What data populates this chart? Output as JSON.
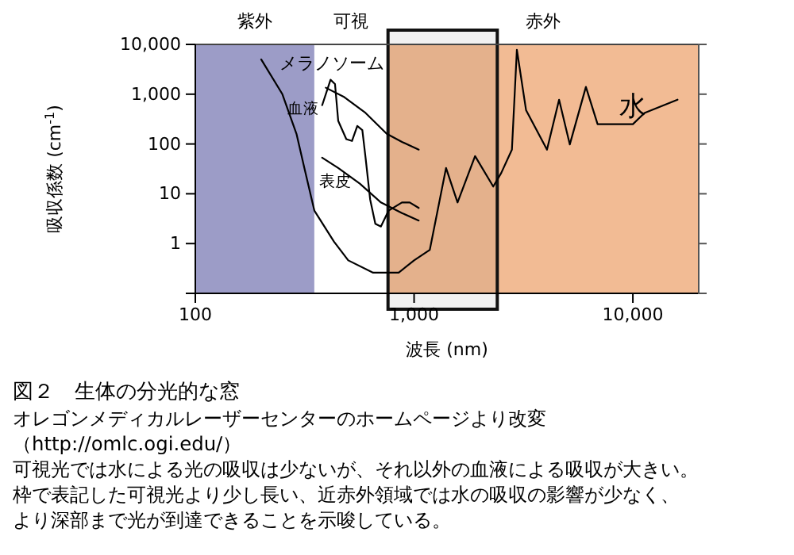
{
  "chart_data": {
    "type": "line",
    "title": "図２　生体の分光的な窓",
    "xlabel": "波長 (nm)",
    "ylabel": "吸収係数 (cm$^{-1}$)",
    "log": "xy",
    "xlim": [
      100,
      20000
    ],
    "xticks": [
      {
        "value": 100,
        "label": "100"
      },
      {
        "value": 1000,
        "label": "1,000"
      },
      {
        "value": 10000,
        "label": "10,000"
      }
    ],
    "ylim": [
      0.1,
      10000
    ],
    "yticks": [
      {
        "value": 0.1,
        "label": null
      },
      {
        "value": 1,
        "label": "1"
      },
      {
        "value": 10,
        "label": "10"
      },
      {
        "value": 100,
        "label": "100"
      },
      {
        "value": 1000,
        "label": "1,000"
      },
      {
        "value": 10000,
        "label": "10,000"
      }
    ],
    "marker": "none",
    "line_style": "solid",
    "bands": [
      {
        "axis": "x",
        "from": 100,
        "to": 350,
        "label": "紫外",
        "color": "#9c9cc7"
      },
      {
        "axis": "x",
        "from": 350,
        "to": 760,
        "label": "可視",
        "color": "#ffffff"
      },
      {
        "axis": "x",
        "from": 760,
        "to": 20000,
        "label": "赤外",
        "color": "#f2bb94"
      },
      {
        "axis": "x",
        "from": 760,
        "to": 2400,
        "color": "#111111"
      }
    ],
    "series": [
      {
        "name": "水",
        "color": "#000000",
        "x": [
          200,
          250,
          290,
          315,
          350,
          430,
          500,
          650,
          850,
          1000,
          1180,
          1400,
          1580,
          1900,
          2300,
          2500,
          2800,
          2950,
          3250,
          4050,
          4600,
          5150,
          6100,
          6900,
          10000,
          11300,
          16000
        ],
        "values": [
          5000,
          1000,
          160,
          33,
          4.6,
          1.1,
          0.46,
          0.26,
          0.26,
          0.46,
          0.75,
          33,
          6.7,
          57,
          14,
          26,
          77,
          7800,
          475,
          77,
          775,
          98,
          1400,
          250,
          250,
          420,
          775
        ]
      },
      {
        "name": "メラノソーム",
        "color": "#000000",
        "x": [
          395,
          480,
          600,
          750,
          880,
          1050
        ],
        "values": [
          1350,
          870,
          420,
          160,
          110,
          77
        ]
      },
      {
        "name": "血液",
        "color": "#000000",
        "x": [
          380,
          415,
          435,
          450,
          490,
          520,
          550,
          580,
          600,
          630,
          665,
          705,
          765,
          880,
          955,
          1050
        ],
        "values": [
          600,
          1950,
          1600,
          290,
          125,
          115,
          230,
          190,
          53,
          7.6,
          2.5,
          2.2,
          4.6,
          6.7,
          6.7,
          5.2
        ]
      },
      {
        "name": "表皮",
        "color": "#000000",
        "x": [
          380,
          450,
          565,
          705,
          880,
          1050
        ],
        "values": [
          53,
          33,
          16,
          6.7,
          4.1,
          2.9
        ]
      }
    ],
    "annotations": [
      "オレゴンメディカルレーザーセンターのホームページより改変",
      "（http://omlc.ogi.edu/）",
      "可視光では水による光の吸収は少ないが、それ以外の血液による吸収が大きい。",
      "枠で表記した可視光より少し長い、近赤外領域では水の吸収の影響が少なく、",
      "より深部まで光が到達できることを示唆している。"
    ]
  }
}
